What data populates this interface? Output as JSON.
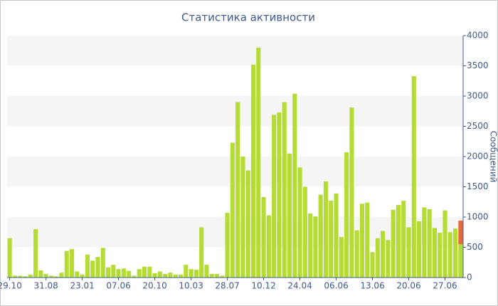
{
  "chart_data": {
    "type": "stacked_bar",
    "title": "Статистика активности",
    "y_label": "Сообщений",
    "categories": [
      "29.10",
      null,
      null,
      null,
      null,
      null,
      null,
      "31.08",
      null,
      null,
      null,
      null,
      null,
      null,
      "23.01",
      null,
      null,
      null,
      null,
      null,
      null,
      "07.06",
      null,
      null,
      null,
      null,
      null,
      null,
      "20.10",
      null,
      null,
      null,
      null,
      null,
      null,
      "10.03",
      null,
      null,
      null,
      null,
      null,
      null,
      "28.07",
      null,
      null,
      null,
      null,
      null,
      null,
      "10.12",
      null,
      null,
      null,
      null,
      null,
      null,
      "24.04",
      null,
      null,
      null,
      null,
      null,
      null,
      "06.06",
      null,
      null,
      null,
      null,
      null,
      null,
      "13.06",
      null,
      null,
      null,
      null,
      null,
      null,
      "20.06",
      null,
      null,
      null,
      null,
      null,
      null,
      "27.06",
      null,
      null,
      null
    ],
    "series": [
      {
        "color": "#b5dc34",
        "values": [
          650,
          30,
          30,
          20,
          50,
          800,
          120,
          60,
          30,
          20,
          80,
          440,
          470,
          100,
          50,
          380,
          280,
          340,
          490,
          170,
          210,
          140,
          150,
          110,
          30,
          140,
          180,
          180,
          70,
          100,
          60,
          80,
          50,
          50,
          210,
          140,
          130,
          830,
          210,
          60,
          60,
          30,
          1070,
          2230,
          2900,
          2000,
          1770,
          3520,
          3800,
          1330,
          1030,
          2690,
          2730,
          2900,
          2050,
          3040,
          1820,
          1500,
          1060,
          1010,
          1370,
          1590,
          1270,
          1390,
          670,
          2070,
          2810,
          780,
          1220,
          1240,
          420,
          650,
          770,
          620,
          1120,
          1200,
          1270,
          830,
          3330,
          930,
          1160,
          1130,
          820,
          740,
          1110,
          750,
          810,
          550
        ]
      },
      {
        "color": "#e8683a",
        "values": [
          0,
          0,
          0,
          0,
          0,
          0,
          0,
          0,
          0,
          0,
          0,
          0,
          0,
          0,
          0,
          0,
          0,
          0,
          0,
          0,
          0,
          0,
          0,
          0,
          0,
          0,
          0,
          0,
          0,
          0,
          0,
          0,
          0,
          0,
          0,
          0,
          0,
          0,
          0,
          0,
          0,
          0,
          0,
          0,
          0,
          0,
          0,
          0,
          0,
          0,
          0,
          0,
          0,
          0,
          0,
          0,
          0,
          0,
          0,
          0,
          0,
          0,
          0,
          0,
          0,
          0,
          0,
          0,
          0,
          0,
          0,
          0,
          0,
          0,
          0,
          0,
          0,
          0,
          0,
          0,
          0,
          0,
          0,
          0,
          0,
          0,
          0,
          390
        ]
      }
    ],
    "ylim": [
      0,
      4000
    ],
    "yticks": [
      0,
      500,
      1000,
      1500,
      2000,
      2500,
      3000,
      3500,
      4000
    ],
    "grid": "bands",
    "y_axis_side": "right"
  }
}
